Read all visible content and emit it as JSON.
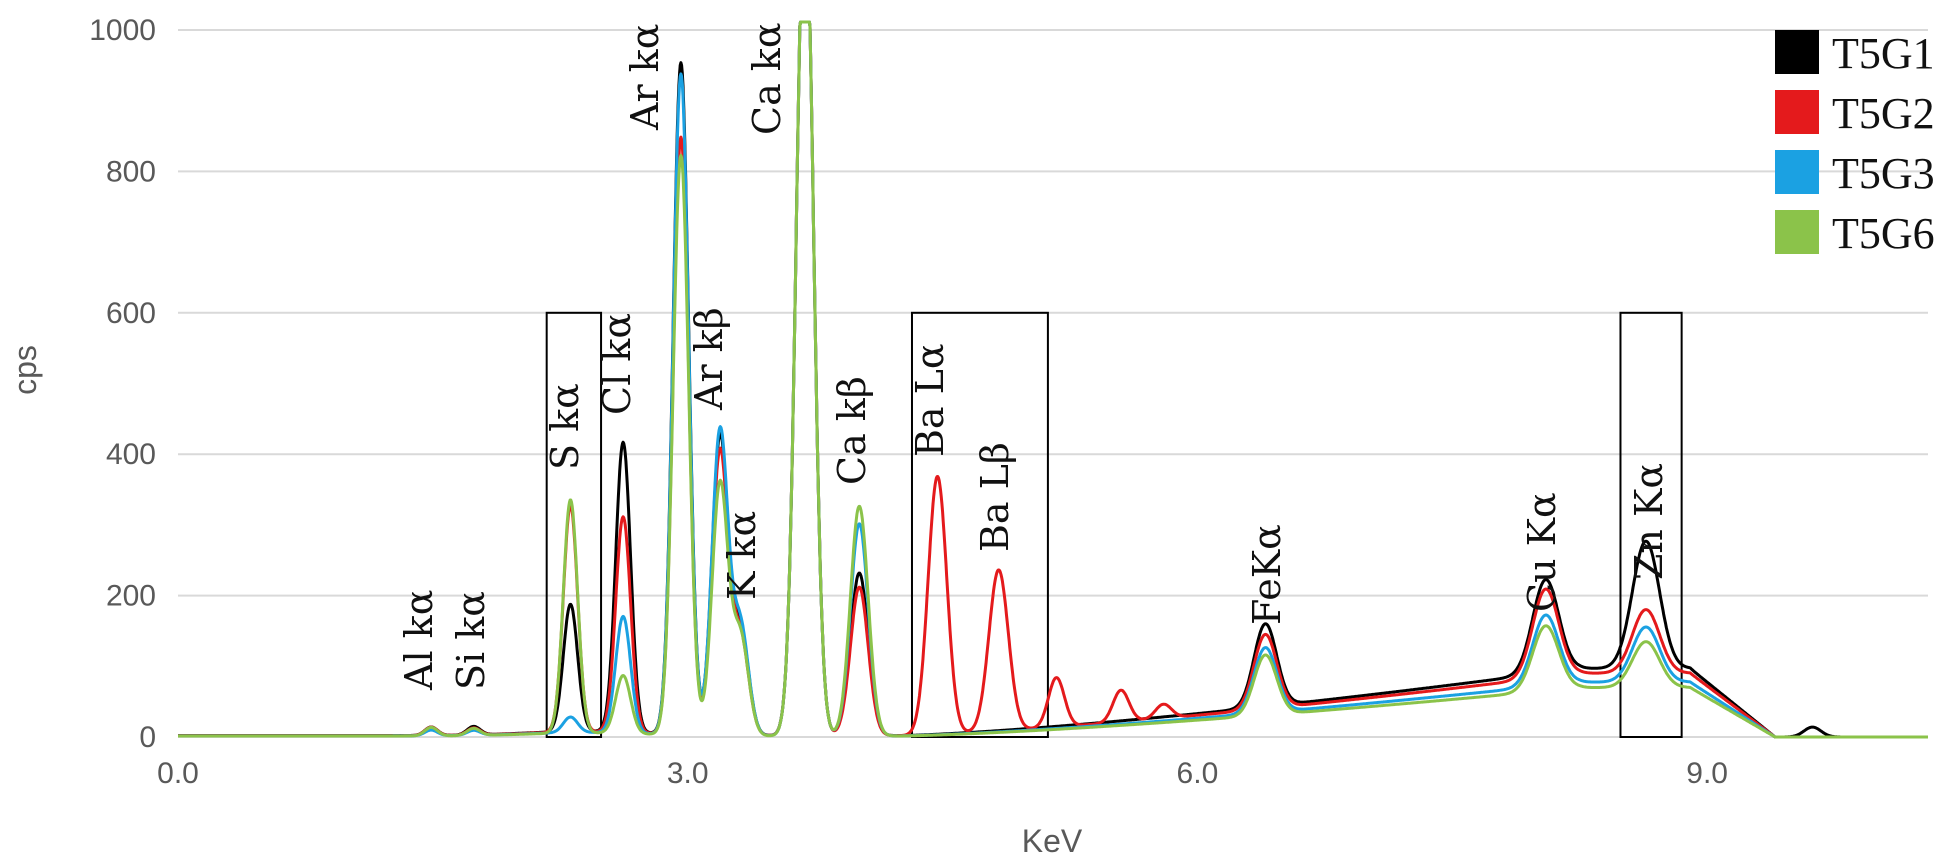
{
  "chart_data": {
    "type": "line",
    "xlabel": "KeV",
    "ylabel": "cps",
    "xlim": [
      0,
      10.3
    ],
    "ylim": [
      0,
      1000
    ],
    "x_ticks": [
      0,
      3,
      6,
      9
    ],
    "x_tick_labels": [
      "0.0",
      "3.0",
      "6.0",
      "9.0"
    ],
    "y_ticks": [
      0,
      200,
      400,
      600,
      800,
      1000
    ],
    "y_tick_labels": [
      "0",
      "200",
      "400",
      "600",
      "800",
      "1000"
    ],
    "grid": true,
    "legend_position": "top-right",
    "colors": {
      "T5G1": "#000000",
      "T5G2": "#e41a1c",
      "T5G3": "#1ba1e2",
      "T5G6": "#8bc34a"
    },
    "series": [
      {
        "name": "T5G1"
      },
      {
        "name": "T5G2"
      },
      {
        "name": "T5G3"
      },
      {
        "name": "T5G6"
      }
    ],
    "peaks": [
      {
        "label": "Al kα",
        "x": 1.49,
        "heights": {
          "T5G1": 12,
          "T5G2": 12,
          "T5G3": 8,
          "T5G6": 12
        }
      },
      {
        "label": "Si kα",
        "x": 1.74,
        "heights": {
          "T5G1": 12,
          "T5G2": 10,
          "T5G3": 7,
          "T5G6": 10
        }
      },
      {
        "label": "S kα",
        "x": 2.31,
        "heights": {
          "T5G1": 180,
          "T5G2": 320,
          "T5G3": 22,
          "T5G6": 330
        }
      },
      {
        "label": "Cl kα",
        "x": 2.62,
        "heights": {
          "T5G1": 410,
          "T5G2": 305,
          "T5G3": 165,
          "T5G6": 82
        }
      },
      {
        "label": "Ar kα",
        "x": 2.96,
        "heights": {
          "T5G1": 950,
          "T5G2": 845,
          "T5G3": 935,
          "T5G6": 820
        }
      },
      {
        "label": "Ar kβ",
        "x": 3.19,
        "heights": {
          "T5G1": 420,
          "T5G2": 400,
          "T5G3": 430,
          "T5G6": 355
        }
      },
      {
        "label": "K kα",
        "x": 3.31,
        "heights": {
          "T5G1": 150,
          "T5G2": 140,
          "T5G3": 155,
          "T5G6": 140
        }
      },
      {
        "label": "Ca kα",
        "x": 3.69,
        "heights": {
          "T5G1": 1200,
          "T5G2": 1200,
          "T5G3": 1200,
          "T5G6": 1200
        }
      },
      {
        "label": "Ca kβ",
        "x": 4.01,
        "heights": {
          "T5G1": 230,
          "T5G2": 210,
          "T5G3": 300,
          "T5G6": 325
        }
      },
      {
        "label": "Ba Lα",
        "x": 4.47,
        "heights": {
          "T5G1": 0,
          "T5G2": 365,
          "T5G3": 0,
          "T5G6": 0
        }
      },
      {
        "label": "Ba Lβ",
        "x": 4.83,
        "heights": {
          "T5G1": 0,
          "T5G2": 228,
          "T5G3": 0,
          "T5G6": 0
        }
      },
      {
        "label": "FeKα",
        "x": 6.4,
        "heights": {
          "T5G1": 117,
          "T5G2": 105,
          "T5G3": 92,
          "T5G6": 85
        }
      },
      {
        "label": "Cu Kα",
        "x": 8.05,
        "heights": {
          "T5G1": 132,
          "T5G2": 125,
          "T5G3": 100,
          "T5G6": 92
        }
      },
      {
        "label": "Zn Kα",
        "x": 8.64,
        "heights": {
          "T5G1": 180,
          "T5G2": 90,
          "T5G3": 78,
          "T5G6": 65
        }
      }
    ],
    "boxes": [
      {
        "x0": 2.17,
        "x1": 2.49,
        "y0": 0,
        "y1": 600
      },
      {
        "x0": 4.32,
        "x1": 5.12,
        "y0": 0,
        "y1": 600
      },
      {
        "x0": 8.49,
        "x1": 8.85,
        "y0": 0,
        "y1": 600
      }
    ]
  }
}
